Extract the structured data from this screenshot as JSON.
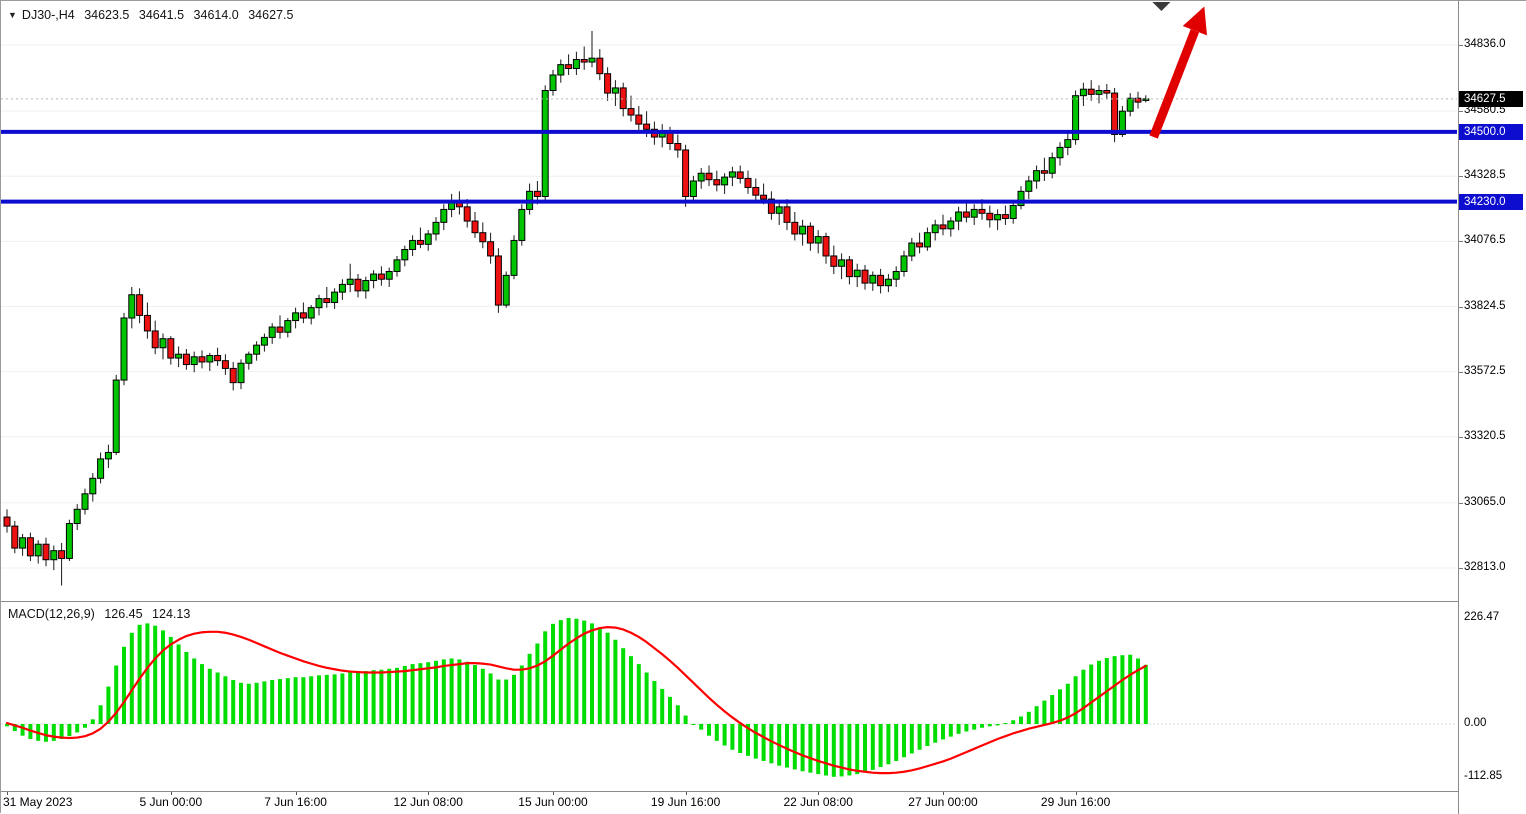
{
  "header": {
    "symbol": "DJ30-,H4",
    "open": "34623.5",
    "high": "34641.5",
    "low": "34614.0",
    "close": "34627.5"
  },
  "icons": {
    "symbol_marker": "▼"
  },
  "price_labels": {
    "current": {
      "text": "34627.5"
    },
    "levels": [
      {
        "text": "34500.0"
      },
      {
        "text": "34230.0"
      }
    ]
  },
  "macd_panel": {
    "label": "MACD(12,26,9)",
    "value_main": "126.45",
    "value_signal": "124.13"
  },
  "colors": {
    "bull": "#00c400",
    "bear": "#ee1111",
    "wick": "#1a1a1a",
    "candle_outline": "#000000",
    "hline": "#0d0dcf",
    "hist": "#00dd00",
    "signal": "#ff0000",
    "arrow": "#e10000",
    "current_box": "#000000",
    "grid": "#f0f0f0",
    "bid_line": "#b8b8b8",
    "zero_line": "#d5d5d5",
    "shift_marker": "#3a3a3a"
  },
  "chart_data": {
    "type": "candlestick_with_macd",
    "symbol": "DJ30-",
    "timeframe": "H4",
    "y_axis": {
      "ticks": [
        "34836.0",
        "34580.5",
        "34328.5",
        "34076.5",
        "33824.5",
        "33572.5",
        "33320.5",
        "33065.0",
        "32813.0"
      ],
      "ylim_visible": [
        32685,
        35006
      ]
    },
    "x_axis": {
      "labels": [
        "31 May 2023",
        "5 Jun 00:00",
        "7 Jun 16:00",
        "12 Jun 08:00",
        "15 Jun 00:00",
        "19 Jun 16:00",
        "22 Jun 08:00",
        "27 Jun 00:00",
        "29 Jun 16:00"
      ],
      "bar_indices": [
        0,
        21,
        37,
        54,
        70,
        87,
        104,
        120,
        137
      ]
    },
    "h_levels": [
      34500.0,
      34230.0
    ],
    "bid": 34627.5,
    "candles": [
      [
        33010,
        33040,
        32950,
        32975
      ],
      [
        32975,
        32995,
        32870,
        32890
      ],
      [
        32890,
        32945,
        32860,
        32930
      ],
      [
        32930,
        32950,
        32840,
        32860
      ],
      [
        32860,
        32920,
        32830,
        32905
      ],
      [
        32905,
        32930,
        32820,
        32845
      ],
      [
        32845,
        32900,
        32805,
        32880
      ],
      [
        32880,
        32910,
        32745,
        32850
      ],
      [
        32850,
        33000,
        32840,
        32985
      ],
      [
        32985,
        33060,
        32960,
        33040
      ],
      [
        33040,
        33120,
        33020,
        33100
      ],
      [
        33100,
        33180,
        33070,
        33160
      ],
      [
        33160,
        33260,
        33140,
        33235
      ],
      [
        33235,
        33290,
        33200,
        33260
      ],
      [
        33260,
        33560,
        33250,
        33540
      ],
      [
        33540,
        33800,
        33520,
        33780
      ],
      [
        33780,
        33900,
        33740,
        33870
      ],
      [
        33870,
        33895,
        33760,
        33790
      ],
      [
        33790,
        33840,
        33700,
        33730
      ],
      [
        33730,
        33770,
        33640,
        33665
      ],
      [
        33665,
        33720,
        33620,
        33700
      ],
      [
        33700,
        33710,
        33600,
        33625
      ],
      [
        33625,
        33670,
        33590,
        33640
      ],
      [
        33640,
        33660,
        33580,
        33600
      ],
      [
        33600,
        33650,
        33570,
        33630
      ],
      [
        33630,
        33655,
        33585,
        33610
      ],
      [
        33610,
        33645,
        33575,
        33635
      ],
      [
        33635,
        33665,
        33595,
        33615
      ],
      [
        33615,
        33640,
        33560,
        33585
      ],
      [
        33585,
        33610,
        33500,
        33530
      ],
      [
        33530,
        33620,
        33505,
        33605
      ],
      [
        33605,
        33650,
        33580,
        33640
      ],
      [
        33640,
        33690,
        33615,
        33675
      ],
      [
        33675,
        33720,
        33650,
        33705
      ],
      [
        33705,
        33760,
        33680,
        33745
      ],
      [
        33745,
        33790,
        33700,
        33725
      ],
      [
        33725,
        33780,
        33705,
        33770
      ],
      [
        33770,
        33820,
        33740,
        33800
      ],
      [
        33800,
        33840,
        33760,
        33780
      ],
      [
        33780,
        33830,
        33755,
        33820
      ],
      [
        33820,
        33870,
        33790,
        33855
      ],
      [
        33855,
        33900,
        33820,
        33840
      ],
      [
        33840,
        33895,
        33815,
        33880
      ],
      [
        33880,
        33930,
        33850,
        33910
      ],
      [
        33910,
        33990,
        33880,
        33930
      ],
      [
        33930,
        33950,
        33860,
        33885
      ],
      [
        33885,
        33940,
        33855,
        33925
      ],
      [
        33925,
        33965,
        33895,
        33950
      ],
      [
        33950,
        33980,
        33905,
        33930
      ],
      [
        33930,
        33975,
        33900,
        33960
      ],
      [
        33960,
        34020,
        33940,
        34005
      ],
      [
        34005,
        34060,
        33980,
        34045
      ],
      [
        34045,
        34100,
        34020,
        34080
      ],
      [
        34080,
        34130,
        34050,
        34065
      ],
      [
        34065,
        34120,
        34040,
        34105
      ],
      [
        34105,
        34170,
        34080,
        34150
      ],
      [
        34150,
        34220,
        34120,
        34200
      ],
      [
        34200,
        34260,
        34170,
        34230
      ],
      [
        34230,
        34270,
        34180,
        34210
      ],
      [
        34210,
        34240,
        34130,
        34155
      ],
      [
        34155,
        34190,
        34090,
        34110
      ],
      [
        34110,
        34150,
        34050,
        34075
      ],
      [
        34075,
        34110,
        33990,
        34020
      ],
      [
        34020,
        34050,
        33800,
        33830
      ],
      [
        33830,
        33960,
        33820,
        33945
      ],
      [
        33945,
        34100,
        33930,
        34080
      ],
      [
        34080,
        34220,
        34060,
        34200
      ],
      [
        34200,
        34300,
        34180,
        34270
      ],
      [
        34270,
        34310,
        34220,
        34250
      ],
      [
        34250,
        34680,
        34230,
        34660
      ],
      [
        34660,
        34740,
        34640,
        34720
      ],
      [
        34720,
        34780,
        34690,
        34760
      ],
      [
        34760,
        34800,
        34720,
        34745
      ],
      [
        34745,
        34810,
        34720,
        34780
      ],
      [
        34780,
        34830,
        34740,
        34770
      ],
      [
        34770,
        34890,
        34750,
        34785
      ],
      [
        34785,
        34820,
        34700,
        34725
      ],
      [
        34725,
        34750,
        34620,
        34650
      ],
      [
        34650,
        34700,
        34600,
        34670
      ],
      [
        34670,
        34690,
        34560,
        34590
      ],
      [
        34590,
        34640,
        34540,
        34565
      ],
      [
        34565,
        34600,
        34500,
        34530
      ],
      [
        34530,
        34580,
        34480,
        34510
      ],
      [
        34510,
        34540,
        34450,
        34480
      ],
      [
        34480,
        34530,
        34440,
        34505
      ],
      [
        34505,
        34520,
        34430,
        34455
      ],
      [
        34455,
        34490,
        34400,
        34430
      ],
      [
        34430,
        34450,
        34210,
        34250
      ],
      [
        34250,
        34330,
        34230,
        34310
      ],
      [
        34310,
        34360,
        34280,
        34340
      ],
      [
        34340,
        34370,
        34290,
        34315
      ],
      [
        34315,
        34350,
        34270,
        34295
      ],
      [
        34295,
        34340,
        34260,
        34325
      ],
      [
        34325,
        34365,
        34290,
        34345
      ],
      [
        34345,
        34370,
        34300,
        34320
      ],
      [
        34320,
        34350,
        34260,
        34285
      ],
      [
        34285,
        34320,
        34230,
        34255
      ],
      [
        34255,
        34300,
        34220,
        34240
      ],
      [
        34240,
        34270,
        34160,
        34185
      ],
      [
        34185,
        34230,
        34140,
        34210
      ],
      [
        34210,
        34240,
        34120,
        34150
      ],
      [
        34150,
        34190,
        34080,
        34105
      ],
      [
        34105,
        34160,
        34060,
        34135
      ],
      [
        34135,
        34150,
        34040,
        34070
      ],
      [
        34070,
        34120,
        34030,
        34095
      ],
      [
        34095,
        34110,
        33990,
        34020
      ],
      [
        34020,
        34060,
        33950,
        33980
      ],
      [
        33980,
        34030,
        33930,
        34005
      ],
      [
        34005,
        34020,
        33910,
        33940
      ],
      [
        33940,
        33990,
        33900,
        33965
      ],
      [
        33965,
        33985,
        33890,
        33915
      ],
      [
        33915,
        33960,
        33885,
        33945
      ],
      [
        33945,
        33970,
        33875,
        33905
      ],
      [
        33905,
        33950,
        33880,
        33930
      ],
      [
        33930,
        33980,
        33900,
        33960
      ],
      [
        33960,
        34040,
        33940,
        34020
      ],
      [
        34020,
        34090,
        34000,
        34070
      ],
      [
        34070,
        34110,
        34030,
        34055
      ],
      [
        34055,
        34130,
        34040,
        34110
      ],
      [
        34110,
        34160,
        34080,
        34140
      ],
      [
        34140,
        34180,
        34100,
        34125
      ],
      [
        34125,
        34170,
        34095,
        34155
      ],
      [
        34155,
        34210,
        34120,
        34190
      ],
      [
        34190,
        34230,
        34150,
        34170
      ],
      [
        34170,
        34220,
        34140,
        34200
      ],
      [
        34200,
        34240,
        34160,
        34185
      ],
      [
        34185,
        34215,
        34130,
        34160
      ],
      [
        34160,
        34200,
        34120,
        34180
      ],
      [
        34180,
        34215,
        34140,
        34165
      ],
      [
        34165,
        34230,
        34145,
        34215
      ],
      [
        34215,
        34290,
        34200,
        34270
      ],
      [
        34270,
        34330,
        34240,
        34310
      ],
      [
        34310,
        34370,
        34280,
        34350
      ],
      [
        34350,
        34400,
        34310,
        34340
      ],
      [
        34340,
        34420,
        34320,
        34400
      ],
      [
        34400,
        34460,
        34370,
        34440
      ],
      [
        34440,
        34500,
        34410,
        34470
      ],
      [
        34470,
        34660,
        34450,
        34640
      ],
      [
        34640,
        34690,
        34600,
        34665
      ],
      [
        34665,
        34700,
        34620,
        34645
      ],
      [
        34645,
        34680,
        34610,
        34660
      ],
      [
        34660,
        34685,
        34625,
        34650
      ],
      [
        34650,
        34670,
        34460,
        34490
      ],
      [
        34490,
        34600,
        34480,
        34580
      ],
      [
        34580,
        34650,
        34560,
        34630
      ],
      [
        34630,
        34655,
        34590,
        34615
      ],
      [
        34623.5,
        34641.5,
        34614.0,
        34627.5
      ]
    ],
    "macd": {
      "params": "12,26,9",
      "main": 126.45,
      "signal_value": 124.13,
      "axis_ticks": [
        "226.47",
        "0.00",
        "-112.85"
      ],
      "histogram": [
        -5,
        -15,
        -25,
        -32,
        -36,
        -38,
        -36,
        -32,
        -26,
        -18,
        -8,
        10,
        40,
        80,
        125,
        165,
        195,
        212,
        215,
        210,
        200,
        186,
        170,
        154,
        140,
        128,
        118,
        110,
        102,
        94,
        88,
        86,
        88,
        91,
        94,
        96,
        98,
        100,
        100,
        102,
        104,
        105,
        106,
        108,
        112,
        112,
        113,
        115,
        116,
        118,
        120,
        124,
        128,
        130,
        132,
        135,
        138,
        140,
        138,
        133,
        126,
        118,
        108,
        95,
        95,
        105,
        125,
        150,
        172,
        198,
        214,
        222,
        226.47,
        225,
        221,
        215,
        206,
        195,
        180,
        162,
        145,
        128,
        110,
        92,
        75,
        58,
        40,
        18,
        0,
        -12,
        -25,
        -36,
        -46,
        -55,
        -62,
        -68,
        -74,
        -79,
        -84,
        -89,
        -93,
        -97,
        -101,
        -104,
        -107,
        -110,
        -112.85,
        -112,
        -110,
        -107,
        -103,
        -98,
        -92,
        -86,
        -79,
        -71,
        -63,
        -55,
        -47,
        -40,
        -33,
        -27,
        -21,
        -16,
        -12,
        -8,
        -5,
        -3,
        2,
        8,
        16,
        26,
        38,
        50,
        62,
        74,
        86,
        102,
        116,
        127,
        135,
        141,
        145,
        147,
        148,
        140,
        126.45
      ],
      "signal": [
        2,
        -3,
        -8,
        -14,
        -19,
        -24,
        -27,
        -29,
        -30,
        -29,
        -26,
        -20,
        -10,
        5,
        24,
        47,
        72,
        97,
        120,
        140,
        157,
        170,
        180,
        188,
        193,
        196,
        197,
        197,
        195,
        191,
        186,
        180,
        173,
        166,
        159,
        152,
        146,
        140,
        134,
        129,
        124,
        120,
        117,
        114,
        112,
        111,
        110,
        110,
        110,
        111,
        112,
        113,
        115,
        117,
        119,
        121,
        124,
        126,
        128,
        130,
        130,
        129,
        127,
        123,
        119,
        116,
        116,
        119,
        125,
        134,
        146,
        159,
        172,
        183,
        193,
        200,
        205,
        207,
        206,
        202,
        195,
        186,
        175,
        162,
        149,
        135,
        120,
        104,
        88,
        72,
        56,
        41,
        27,
        14,
        2,
        -9,
        -19,
        -28,
        -37,
        -45,
        -53,
        -60,
        -67,
        -73,
        -79,
        -84,
        -89,
        -93,
        -97,
        -100,
        -102,
        -104,
        -105,
        -105,
        -104,
        -102,
        -99,
        -95,
        -90,
        -85,
        -80,
        -74,
        -67,
        -60,
        -53,
        -46,
        -39,
        -32,
        -26,
        -20,
        -15,
        -10,
        -6,
        -2,
        2,
        7,
        14,
        23,
        34,
        46,
        58,
        70,
        82,
        94,
        105,
        115,
        124.13
      ]
    },
    "annotations": {
      "arrow": {
        "from_bar": 147,
        "from_price": 34480,
        "to_bar": 153.5,
        "to_price": 34985
      },
      "shift_marker_bar": 148
    }
  }
}
